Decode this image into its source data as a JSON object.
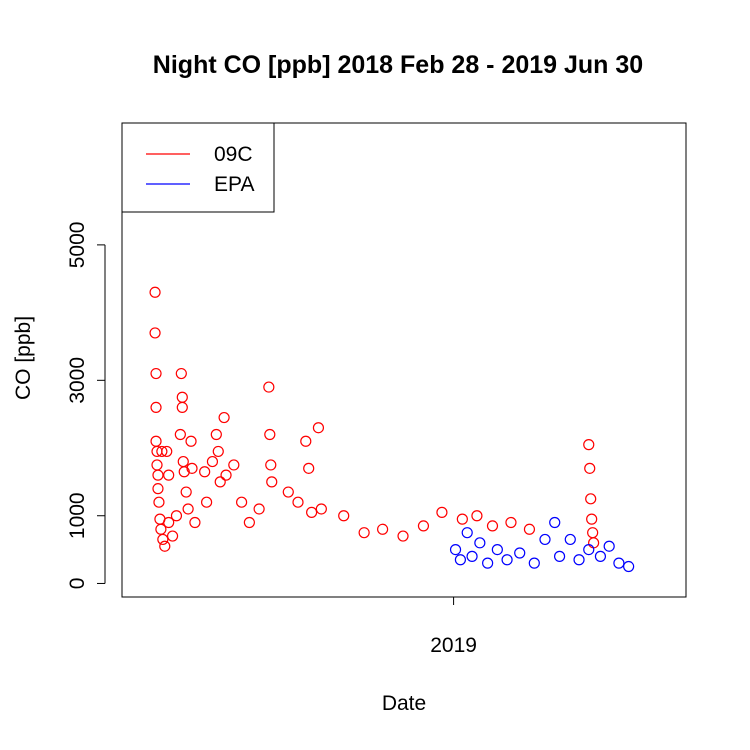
{
  "chart_data": {
    "type": "scatter",
    "title": "Night CO [ppb] 2018 Feb 28 - 2019 Jun 30",
    "xlabel": "Date",
    "ylabel": "CO [ppb]",
    "x_axis_type": "date",
    "xlim": [
      "2018-01-25",
      "2019-08-28"
    ],
    "ylim": [
      -200,
      6800
    ],
    "x_ticks": [
      {
        "date": "2019-01-01",
        "label": "2019"
      }
    ],
    "y_ticks": [
      {
        "value": 0,
        "label": "0"
      },
      {
        "value": 1000,
        "label": "1000"
      },
      {
        "value": 3000,
        "label": "3000"
      },
      {
        "value": 5000,
        "label": "5000"
      }
    ],
    "marker": "open-circle",
    "legend": {
      "position": "top-left",
      "entries": [
        {
          "label": "09C",
          "color": "#ff0000"
        },
        {
          "label": "EPA",
          "color": "#0000ff"
        }
      ]
    },
    "series": [
      {
        "name": "09C",
        "color": "#ff0000",
        "points": [
          {
            "x": "2018-02-28",
            "y": 4300
          },
          {
            "x": "2018-02-28",
            "y": 3700
          },
          {
            "x": "2018-03-01",
            "y": 3100
          },
          {
            "x": "2018-03-01",
            "y": 2600
          },
          {
            "x": "2018-03-01",
            "y": 2100
          },
          {
            "x": "2018-03-02",
            "y": 1950
          },
          {
            "x": "2018-03-02",
            "y": 1750
          },
          {
            "x": "2018-03-03",
            "y": 1600
          },
          {
            "x": "2018-03-03",
            "y": 1400
          },
          {
            "x": "2018-03-04",
            "y": 1200
          },
          {
            "x": "2018-03-05",
            "y": 950
          },
          {
            "x": "2018-03-06",
            "y": 800
          },
          {
            "x": "2018-03-07",
            "y": 1950
          },
          {
            "x": "2018-03-08",
            "y": 650
          },
          {
            "x": "2018-03-10",
            "y": 550
          },
          {
            "x": "2018-03-12",
            "y": 1950
          },
          {
            "x": "2018-03-14",
            "y": 900
          },
          {
            "x": "2018-03-14",
            "y": 1600
          },
          {
            "x": "2018-03-18",
            "y": 700
          },
          {
            "x": "2018-03-22",
            "y": 1000
          },
          {
            "x": "2018-03-26",
            "y": 2200
          },
          {
            "x": "2018-03-27",
            "y": 3100
          },
          {
            "x": "2018-03-28",
            "y": 2750
          },
          {
            "x": "2018-03-28",
            "y": 2600
          },
          {
            "x": "2018-03-29",
            "y": 1800
          },
          {
            "x": "2018-03-30",
            "y": 1650
          },
          {
            "x": "2018-04-01",
            "y": 1350
          },
          {
            "x": "2018-04-03",
            "y": 1100
          },
          {
            "x": "2018-04-06",
            "y": 2100
          },
          {
            "x": "2018-04-07",
            "y": 1700
          },
          {
            "x": "2018-04-10",
            "y": 900
          },
          {
            "x": "2018-04-20",
            "y": 1650
          },
          {
            "x": "2018-04-22",
            "y": 1200
          },
          {
            "x": "2018-04-28",
            "y": 1800
          },
          {
            "x": "2018-05-02",
            "y": 2200
          },
          {
            "x": "2018-05-04",
            "y": 1950
          },
          {
            "x": "2018-05-06",
            "y": 1500
          },
          {
            "x": "2018-05-10",
            "y": 2450
          },
          {
            "x": "2018-05-12",
            "y": 1600
          },
          {
            "x": "2018-05-20",
            "y": 1750
          },
          {
            "x": "2018-05-28",
            "y": 1200
          },
          {
            "x": "2018-06-05",
            "y": 900
          },
          {
            "x": "2018-06-15",
            "y": 1100
          },
          {
            "x": "2018-06-25",
            "y": 2900
          },
          {
            "x": "2018-06-26",
            "y": 2200
          },
          {
            "x": "2018-06-27",
            "y": 1750
          },
          {
            "x": "2018-06-28",
            "y": 1500
          },
          {
            "x": "2018-07-15",
            "y": 1350
          },
          {
            "x": "2018-07-25",
            "y": 1200
          },
          {
            "x": "2018-08-02",
            "y": 2100
          },
          {
            "x": "2018-08-05",
            "y": 1700
          },
          {
            "x": "2018-08-08",
            "y": 1050
          },
          {
            "x": "2018-08-15",
            "y": 2300
          },
          {
            "x": "2018-08-18",
            "y": 1100
          },
          {
            "x": "2018-09-10",
            "y": 1000
          },
          {
            "x": "2018-10-01",
            "y": 750
          },
          {
            "x": "2018-10-20",
            "y": 800
          },
          {
            "x": "2018-11-10",
            "y": 700
          },
          {
            "x": "2018-12-01",
            "y": 850
          },
          {
            "x": "2018-12-20",
            "y": 1050
          },
          {
            "x": "2019-01-10",
            "y": 950
          },
          {
            "x": "2019-01-25",
            "y": 1000
          },
          {
            "x": "2019-02-10",
            "y": 850
          },
          {
            "x": "2019-03-01",
            "y": 900
          },
          {
            "x": "2019-03-20",
            "y": 800
          },
          {
            "x": "2019-05-20",
            "y": 2050
          },
          {
            "x": "2019-05-21",
            "y": 1700
          },
          {
            "x": "2019-05-22",
            "y": 1250
          },
          {
            "x": "2019-05-23",
            "y": 950
          },
          {
            "x": "2019-05-24",
            "y": 750
          },
          {
            "x": "2019-05-25",
            "y": 600
          }
        ]
      },
      {
        "name": "EPA",
        "color": "#0000ff",
        "points": [
          {
            "x": "2019-01-03",
            "y": 500
          },
          {
            "x": "2019-01-08",
            "y": 350
          },
          {
            "x": "2019-01-15",
            "y": 750
          },
          {
            "x": "2019-01-20",
            "y": 400
          },
          {
            "x": "2019-01-28",
            "y": 600
          },
          {
            "x": "2019-02-05",
            "y": 300
          },
          {
            "x": "2019-02-15",
            "y": 500
          },
          {
            "x": "2019-02-25",
            "y": 350
          },
          {
            "x": "2019-03-10",
            "y": 450
          },
          {
            "x": "2019-03-25",
            "y": 300
          },
          {
            "x": "2019-04-05",
            "y": 650
          },
          {
            "x": "2019-04-15",
            "y": 900
          },
          {
            "x": "2019-04-20",
            "y": 400
          },
          {
            "x": "2019-05-01",
            "y": 650
          },
          {
            "x": "2019-05-10",
            "y": 350
          },
          {
            "x": "2019-05-20",
            "y": 500
          },
          {
            "x": "2019-06-01",
            "y": 400
          },
          {
            "x": "2019-06-10",
            "y": 550
          },
          {
            "x": "2019-06-20",
            "y": 300
          },
          {
            "x": "2019-06-30",
            "y": 250
          }
        ]
      }
    ]
  }
}
